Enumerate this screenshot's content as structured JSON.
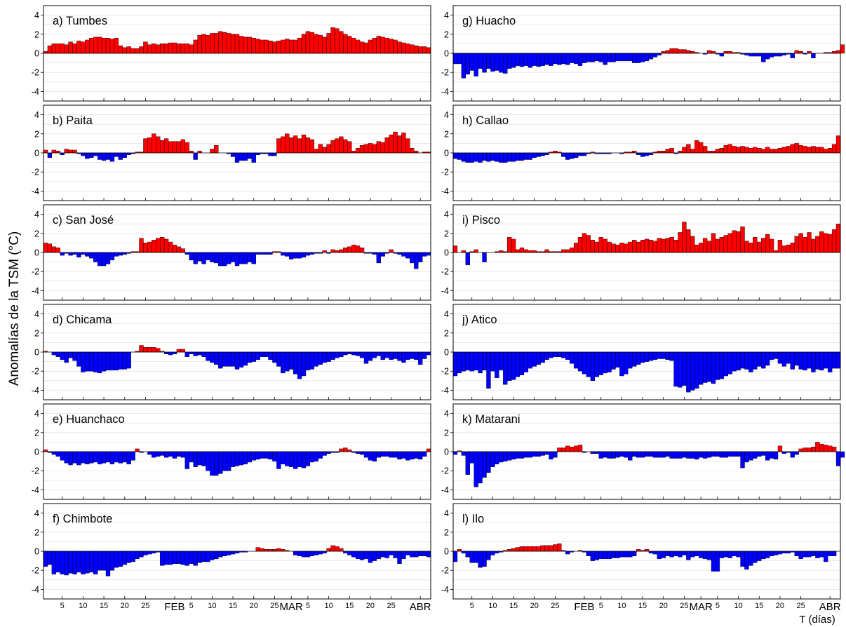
{
  "chart_data": {
    "type": "bar",
    "ylabel": "Anomalías de la TSM (°C)",
    "xlabel": "T (días)",
    "ylim": [
      -5,
      5
    ],
    "yticks": [
      -4,
      -2,
      0,
      2,
      4
    ],
    "grid": true,
    "colors": {
      "positive": "#ff0000",
      "negative": "#0000ff"
    },
    "x_ticks": [
      {
        "day": 5,
        "label": "5"
      },
      {
        "day": 10,
        "label": "10"
      },
      {
        "day": 15,
        "label": "15"
      },
      {
        "day": 20,
        "label": "20"
      },
      {
        "day": 25,
        "label": "25"
      },
      {
        "day": 32,
        "label": "FEB"
      },
      {
        "day": 36,
        "label": "5"
      },
      {
        "day": 41,
        "label": "10"
      },
      {
        "day": 46,
        "label": "15"
      },
      {
        "day": 51,
        "label": "20"
      },
      {
        "day": 56,
        "label": "25"
      },
      {
        "day": 60,
        "label": "MAR"
      },
      {
        "day": 64,
        "label": "5"
      },
      {
        "day": 69,
        "label": "10"
      },
      {
        "day": 74,
        "label": "15"
      },
      {
        "day": 79,
        "label": "20"
      },
      {
        "day": 84,
        "label": "25"
      },
      {
        "day": 91,
        "label": "ABR"
      }
    ],
    "panels": [
      {
        "title": "a) Tumbes",
        "values": [
          0.2,
          0.8,
          1,
          1,
          1,
          0.9,
          1.2,
          1,
          1.3,
          1.2,
          1.4,
          1.6,
          1.7,
          1.7,
          1.6,
          1.6,
          1.5,
          1.6,
          0.8,
          0.6,
          0.7,
          0.5,
          0.5,
          0.7,
          1.2,
          0.9,
          1,
          0.9,
          1,
          1,
          1.1,
          1.1,
          1,
          1,
          1,
          0.9,
          1.4,
          1.9,
          2,
          1.9,
          2.1,
          2.1,
          2.3,
          2.2,
          2.1,
          2,
          2,
          1.8,
          1.7,
          1.7,
          1.6,
          1.5,
          1.4,
          1.4,
          1.3,
          1.2,
          1.3,
          1.4,
          1.5,
          1.4,
          1.4,
          1.6,
          2,
          2.3,
          2.2,
          2,
          1.9,
          1.7,
          2.1,
          2.7,
          2.6,
          2.3,
          2,
          1.8,
          1.6,
          1.4,
          1.2,
          1.1,
          1.4,
          1.6,
          1.8,
          1.7,
          1.6,
          1.5,
          1.4,
          1.2,
          1.1,
          1,
          0.9,
          0.8,
          0.7,
          0.7,
          0.6
        ]
      },
      {
        "title": "b) Paita",
        "values": [
          0.3,
          -0.5,
          0.3,
          0.2,
          -0.2,
          0.4,
          0.3,
          0.3,
          -0.1,
          -0.3,
          -0.6,
          -0.5,
          -0.3,
          -0.7,
          -0.8,
          -0.7,
          -0.9,
          -0.4,
          -0.7,
          -0.5,
          -0.2,
          -0.1,
          0.1,
          0.1,
          1.5,
          1.6,
          2,
          1.7,
          1.3,
          1.5,
          1.2,
          1.2,
          1.2,
          1.4,
          1.1,
          0.2,
          -0.7,
          0.2,
          0,
          0,
          0.4,
          0.8,
          0,
          0,
          -0.1,
          -0.4,
          -1,
          -0.8,
          -0.8,
          -0.6,
          -1,
          -0.2,
          -0.1,
          -0.1,
          -0.3,
          -0.3,
          1.5,
          1.7,
          2,
          1.6,
          1.8,
          1.5,
          1.9,
          1.6,
          1.4,
          0.4,
          0.9,
          0.6,
          0.9,
          1.3,
          1.5,
          1.7,
          1.4,
          1.2,
          0.2,
          0.5,
          0.8,
          0.9,
          1,
          0.9,
          1.2,
          1.1,
          1.6,
          1.9,
          2.2,
          1.8,
          2.1,
          1.5,
          0.5,
          0.2,
          0,
          0.1,
          0.1
        ]
      },
      {
        "title": "c) San José",
        "values": [
          1,
          0.9,
          0.6,
          0.5,
          -0.3,
          -0.1,
          -0.3,
          -0.2,
          -0.5,
          -0.2,
          -0.4,
          -0.6,
          -1,
          -1.4,
          -1.4,
          -1.2,
          -0.8,
          -0.4,
          -0.3,
          -0.2,
          -0.1,
          0.1,
          0.1,
          1.5,
          1,
          1.1,
          1.3,
          1.5,
          1.6,
          1.4,
          1.1,
          0.8,
          0.6,
          0.4,
          -0.2,
          -0.8,
          -1.2,
          -0.9,
          -1.2,
          -0.8,
          -1,
          -1.1,
          -1.4,
          -1.4,
          -1.2,
          -1,
          -1.4,
          -1.2,
          -1.2,
          -1,
          -1.2,
          -0.2,
          -0.2,
          -0.2,
          -0.2,
          0.1,
          0.1,
          -0.3,
          -0.4,
          -0.7,
          -0.6,
          -0.6,
          -0.5,
          -0.3,
          -0.2,
          -0.1,
          -0.1,
          0.2,
          -0.1,
          0.3,
          0.2,
          0.3,
          0.5,
          0.6,
          0.8,
          0.7,
          0.5,
          -0.1,
          -0.1,
          -0.2,
          -1.1,
          -0.4,
          -0.1,
          0.3,
          -0.1,
          -0.2,
          -0.4,
          -0.6,
          -1.1,
          -1.7,
          -1,
          -0.4,
          -0.3
        ]
      },
      {
        "title": "d) Chicama",
        "values": [
          0.1,
          0,
          -0.3,
          -0.5,
          -0.8,
          -1.1,
          -0.6,
          -0.9,
          -1.5,
          -2.1,
          -2,
          -2,
          -2.1,
          -2.2,
          -2,
          -1.9,
          -1.9,
          -1.9,
          -1.8,
          -1.8,
          -1.7,
          0,
          0.1,
          0.7,
          0.5,
          0.5,
          0.5,
          0.4,
          0.1,
          -0.2,
          -0.3,
          -0.2,
          0.3,
          0.3,
          -0.5,
          -0.2,
          -0.4,
          -0.3,
          -0.5,
          -0.9,
          -1.1,
          -1.3,
          -1.7,
          -1.5,
          -1.5,
          -1.5,
          -1.8,
          -1.6,
          -1.4,
          -1.1,
          -1,
          -0.8,
          -0.5,
          -0.5,
          -0.8,
          -1.1,
          -1.5,
          -2.2,
          -2,
          -1.8,
          -2.3,
          -2.8,
          -2.5,
          -1.9,
          -1.8,
          -1.5,
          -1.3,
          -1.1,
          -1,
          -0.8,
          -0.6,
          -0.5,
          -0.3,
          -0.2,
          -0.3,
          -0.4,
          -0.6,
          -1.2,
          -0.9,
          -0.6,
          -0.4,
          -0.8,
          -0.6,
          -0.8,
          -0.7,
          -0.9,
          -1.1,
          -0.8,
          -0.7,
          -0.8,
          -1.3,
          -0.7,
          -0.3
        ]
      },
      {
        "title": "e) Huanchaco",
        "values": [
          0.2,
          -0.1,
          -0.3,
          -0.5,
          -0.9,
          -1.2,
          -1.4,
          -1.2,
          -1.4,
          -1.2,
          -1.3,
          -1.2,
          -1.1,
          -1.3,
          -1.2,
          -1.1,
          -1.3,
          -1.1,
          -1.2,
          -1.1,
          -1.3,
          -0.9,
          0.3,
          -0.1,
          0,
          -0.3,
          -0.6,
          -0.5,
          -0.4,
          -0.6,
          -0.5,
          -0.7,
          -0.5,
          -0.6,
          -1.8,
          -1.1,
          -1.6,
          -1.4,
          -1.5,
          -2,
          -2.5,
          -2.5,
          -2.3,
          -2,
          -2,
          -1.6,
          -1.5,
          -1.4,
          -1.3,
          -1.1,
          -0.9,
          -0.8,
          -0.7,
          -0.7,
          -0.8,
          -1,
          -1.8,
          -1.3,
          -1.5,
          -1.6,
          -1.8,
          -1.6,
          -1.7,
          -1.5,
          -1.1,
          -1,
          -0.7,
          -0.4,
          -0.2,
          -0.1,
          -0.1,
          0.3,
          0.4,
          0.2,
          -0.1,
          -0.2,
          -0.3,
          -0.6,
          -0.9,
          -1,
          -0.6,
          -0.5,
          -0.5,
          -0.6,
          -0.6,
          -0.8,
          -0.7,
          -0.9,
          -0.8,
          -0.7,
          -0.8,
          -0.5,
          0.3
        ]
      },
      {
        "title": "f) Chimbote",
        "values": [
          -1.6,
          -1.4,
          -2.4,
          -2.2,
          -2.4,
          -2.5,
          -2.3,
          -2.4,
          -2.2,
          -2.4,
          -2.3,
          -2.2,
          -2.4,
          -2,
          -2,
          -2.6,
          -2,
          -1.7,
          -1.6,
          -1.4,
          -1.2,
          -1.1,
          -0.8,
          -0.6,
          -0.4,
          -0.3,
          -0.2,
          -0.1,
          -1.5,
          -1.4,
          -1.4,
          -1.3,
          -1.3,
          -1.4,
          -1.5,
          -1.3,
          -1.5,
          -1.2,
          -1.1,
          -1.1,
          -0.9,
          -0.8,
          -0.6,
          -0.5,
          -0.4,
          -0.3,
          -0.2,
          -0.1,
          -0.1,
          0,
          0,
          0.4,
          0.3,
          0.2,
          0.2,
          0.2,
          0.3,
          0.2,
          0.1,
          0,
          -0.4,
          -0.5,
          -0.6,
          -0.6,
          -0.5,
          -0.4,
          -0.3,
          -0.2,
          0.3,
          0.6,
          0.5,
          0.3,
          -0.2,
          -0.4,
          -0.6,
          -0.8,
          -0.9,
          -0.8,
          -1.2,
          -1,
          -0.8,
          -0.6,
          -0.7,
          -0.4,
          -0.7,
          -1.3,
          -0.8,
          -0.4,
          -0.6,
          -0.6,
          -0.5,
          -0.5,
          -0.6
        ]
      },
      {
        "title": "g) Huacho",
        "values": [
          -1.1,
          -1.1,
          -2.6,
          -2.2,
          -1.8,
          -2.4,
          -1.6,
          -2,
          -1.6,
          -1.9,
          -1.8,
          -2,
          -2.1,
          -1.6,
          -1.5,
          -1.3,
          -1.4,
          -1.3,
          -1.5,
          -1.3,
          -1.4,
          -1.3,
          -1.2,
          -1.3,
          -1.1,
          -1.2,
          -1.1,
          -1.2,
          -1,
          -1.1,
          -1.3,
          -1,
          -0.9,
          -0.9,
          -0.8,
          -0.9,
          -1.2,
          -0.9,
          -0.9,
          -0.8,
          -0.8,
          -0.8,
          -0.8,
          -1,
          -1,
          -0.9,
          -0.8,
          -0.6,
          -0.4,
          -0.2,
          0.2,
          0.3,
          0.5,
          0.5,
          0.4,
          0.4,
          0.3,
          0.2,
          0.1,
          0,
          -0.1,
          0.3,
          0.2,
          -0.1,
          -0.3,
          0.2,
          0.2,
          0.1,
          0.1,
          -0.1,
          -0.2,
          -0.3,
          -0.3,
          -0.3,
          -0.9,
          -0.6,
          -0.4,
          -0.3,
          -0.3,
          -0.2,
          -0.1,
          -0.5,
          0.3,
          0.2,
          -0.1,
          0.2,
          -0.5,
          0,
          0,
          0.1,
          0.1,
          0.2,
          0.3,
          0.9
        ]
      },
      {
        "title": "h) Callao",
        "values": [
          -0.6,
          -0.7,
          -0.9,
          -1,
          -1,
          -0.9,
          -1,
          -0.8,
          -0.9,
          -0.8,
          -0.9,
          -1,
          -1,
          -0.9,
          -0.9,
          -0.8,
          -0.8,
          -0.7,
          -0.7,
          -0.5,
          -0.4,
          -0.3,
          -0.2,
          0.1,
          0.2,
          0.1,
          -0.4,
          -0.7,
          -0.6,
          -0.5,
          -0.3,
          -0.3,
          -0.1,
          0.1,
          -0.1,
          -0.1,
          -0.1,
          -0.1,
          0,
          0,
          -0.1,
          0.1,
          0.1,
          0.2,
          -0.2,
          -0.4,
          -0.3,
          -0.2,
          0.1,
          0.2,
          0.2,
          0.4,
          0.5,
          -0.1,
          0.2,
          0.6,
          0.9,
          0.4,
          1.3,
          1.1,
          0.7,
          0.2,
          0.2,
          0.4,
          0.5,
          0.8,
          0.9,
          0.7,
          0.6,
          0.7,
          0.6,
          0.5,
          0.6,
          0.5,
          0.4,
          0.6,
          0.4,
          0.4,
          0.5,
          0.6,
          0.7,
          0.9,
          1,
          0.8,
          0.7,
          0.6,
          0.7,
          0.6,
          0.6,
          0.4,
          0.5,
          0.9,
          1.8
        ]
      },
      {
        "title": "i) Pisco",
        "values": [
          0.7,
          0,
          0.2,
          -1.3,
          0.1,
          0.3,
          0,
          -1,
          0,
          0,
          0.1,
          0.2,
          0.1,
          1.6,
          1.4,
          0.3,
          0.5,
          0.3,
          0.2,
          0.2,
          0.1,
          0.1,
          0.3,
          0.1,
          0.1,
          0.1,
          0.3,
          0.3,
          0.5,
          1,
          1.6,
          2,
          1.8,
          1.3,
          1.1,
          1.6,
          1.4,
          1.1,
          0.9,
          0.8,
          1,
          0.9,
          1.1,
          1.3,
          1.1,
          1.3,
          1.4,
          1.3,
          1.2,
          1.5,
          1.4,
          1.5,
          1.6,
          1.3,
          2.1,
          3.2,
          2.4,
          1.7,
          0.8,
          1,
          1.5,
          1.2,
          2,
          1.4,
          1.6,
          1.8,
          2,
          2.3,
          2.2,
          2.7,
          1.2,
          1,
          1.6,
          1.1,
          1.5,
          1.9,
          1.4,
          0.2,
          1.3,
          0.7,
          0.8,
          1,
          1.7,
          2,
          1.6,
          2.1,
          1.4,
          1.7,
          2.2,
          2,
          1.9,
          2.4,
          3
        ]
      },
      {
        "title": "j) Atico",
        "values": [
          -2.5,
          -2.2,
          -2,
          -1.9,
          -2,
          -1.9,
          -2.2,
          -1.9,
          -3.8,
          -2,
          -2.7,
          -1.9,
          -3.4,
          -3,
          -2.9,
          -2.6,
          -2.4,
          -2.1,
          -1.7,
          -1.5,
          -1.3,
          -1.1,
          -0.8,
          -0.6,
          -0.5,
          -0.5,
          -0.6,
          -0.8,
          -1.2,
          -1.7,
          -2,
          -2.3,
          -2.6,
          -3,
          -2.6,
          -2.4,
          -2.2,
          -2.1,
          -1.8,
          -1.6,
          -2.5,
          -2.3,
          -1.7,
          -1.5,
          -1.3,
          -1.1,
          -1,
          -0.9,
          -0.8,
          -0.7,
          -0.7,
          -0.8,
          -0.9,
          -3.6,
          -3.7,
          -3.5,
          -4.2,
          -4,
          -3.8,
          -3.4,
          -3.2,
          -3.1,
          -3.3,
          -2.9,
          -2.8,
          -2.5,
          -2.3,
          -2,
          -1.9,
          -1.7,
          -1.8,
          -2.1,
          -1.8,
          -1.5,
          -1.7,
          -1.4,
          -0.8,
          -0.7,
          -1.2,
          -1.5,
          -1.2,
          -1.8,
          -1.4,
          -1.8,
          -1.9,
          -1.7,
          -2.1,
          -1.8,
          -1.9,
          -1.7,
          -2.1,
          -1.7,
          -1.7
        ]
      },
      {
        "title": "k) Matarani",
        "values": [
          -0.3,
          0.1,
          -0.4,
          -2.4,
          -1.2,
          -3.7,
          -3.3,
          -2.7,
          -2.2,
          -1.6,
          -1.3,
          -1.1,
          -1,
          -0.9,
          -0.8,
          -0.7,
          -0.7,
          -0.6,
          -0.6,
          -0.5,
          -0.5,
          -0.4,
          -0.3,
          -0.8,
          -0.6,
          0.4,
          0.4,
          0.6,
          0.5,
          0.6,
          0.7,
          -0.1,
          0,
          -0.2,
          -0.2,
          -0.7,
          -0.6,
          -0.7,
          -0.7,
          -0.6,
          -0.5,
          -0.6,
          -0.9,
          -0.5,
          -0.6,
          -0.6,
          -0.5,
          -0.5,
          -0.6,
          -0.6,
          -0.6,
          -0.5,
          -0.7,
          -0.7,
          -0.7,
          -0.6,
          -0.7,
          -0.7,
          -0.8,
          -0.6,
          -0.7,
          -0.6,
          -0.5,
          -0.5,
          -0.6,
          -0.6,
          -0.5,
          -0.5,
          -0.5,
          -1.7,
          -1.1,
          -0.9,
          -0.7,
          -0.5,
          -0.4,
          -0.9,
          -0.7,
          -0.8,
          0.6,
          -0.2,
          -0.1,
          -0.6,
          -0.3,
          0.3,
          0.4,
          0.4,
          0.5,
          1,
          0.8,
          0.7,
          0.6,
          0.5,
          -1.5,
          -0.6
        ]
      },
      {
        "title": "l) Ilo",
        "values": [
          -1.1,
          0.2,
          -0.2,
          -0.6,
          -1.2,
          -1.2,
          -1.7,
          -1.6,
          -0.9,
          -0.4,
          -0.2,
          -0.1,
          0.1,
          0.2,
          0.3,
          0.4,
          0.5,
          0.5,
          0.5,
          0.5,
          0.5,
          0.6,
          0.6,
          0.6,
          0.7,
          0.8,
          0.1,
          -0.3,
          -0.1,
          0,
          0.1,
          -0.1,
          -0.5,
          -1,
          -0.9,
          -0.8,
          -0.8,
          -0.8,
          -0.7,
          -0.7,
          -0.6,
          -0.6,
          -0.6,
          -0.5,
          0.2,
          0.1,
          0.2,
          -0.2,
          -0.3,
          -0.8,
          -0.7,
          -0.5,
          -0.6,
          -0.5,
          -0.6,
          -0.4,
          -0.9,
          -0.6,
          -0.5,
          -0.7,
          -0.8,
          -0.9,
          -2.1,
          -2.1,
          -0.7,
          -0.6,
          -0.7,
          -0.5,
          -0.6,
          -1.6,
          -1.9,
          -1.5,
          -1.2,
          -1,
          -0.8,
          -0.7,
          -0.5,
          -0.4,
          -0.3,
          -0.2,
          -0.2,
          -0.1,
          -0.5,
          -0.8,
          -0.6,
          -0.6,
          -0.5,
          -0.7,
          -0.6,
          -1.1,
          -0.5,
          -0.5
        ]
      }
    ]
  }
}
